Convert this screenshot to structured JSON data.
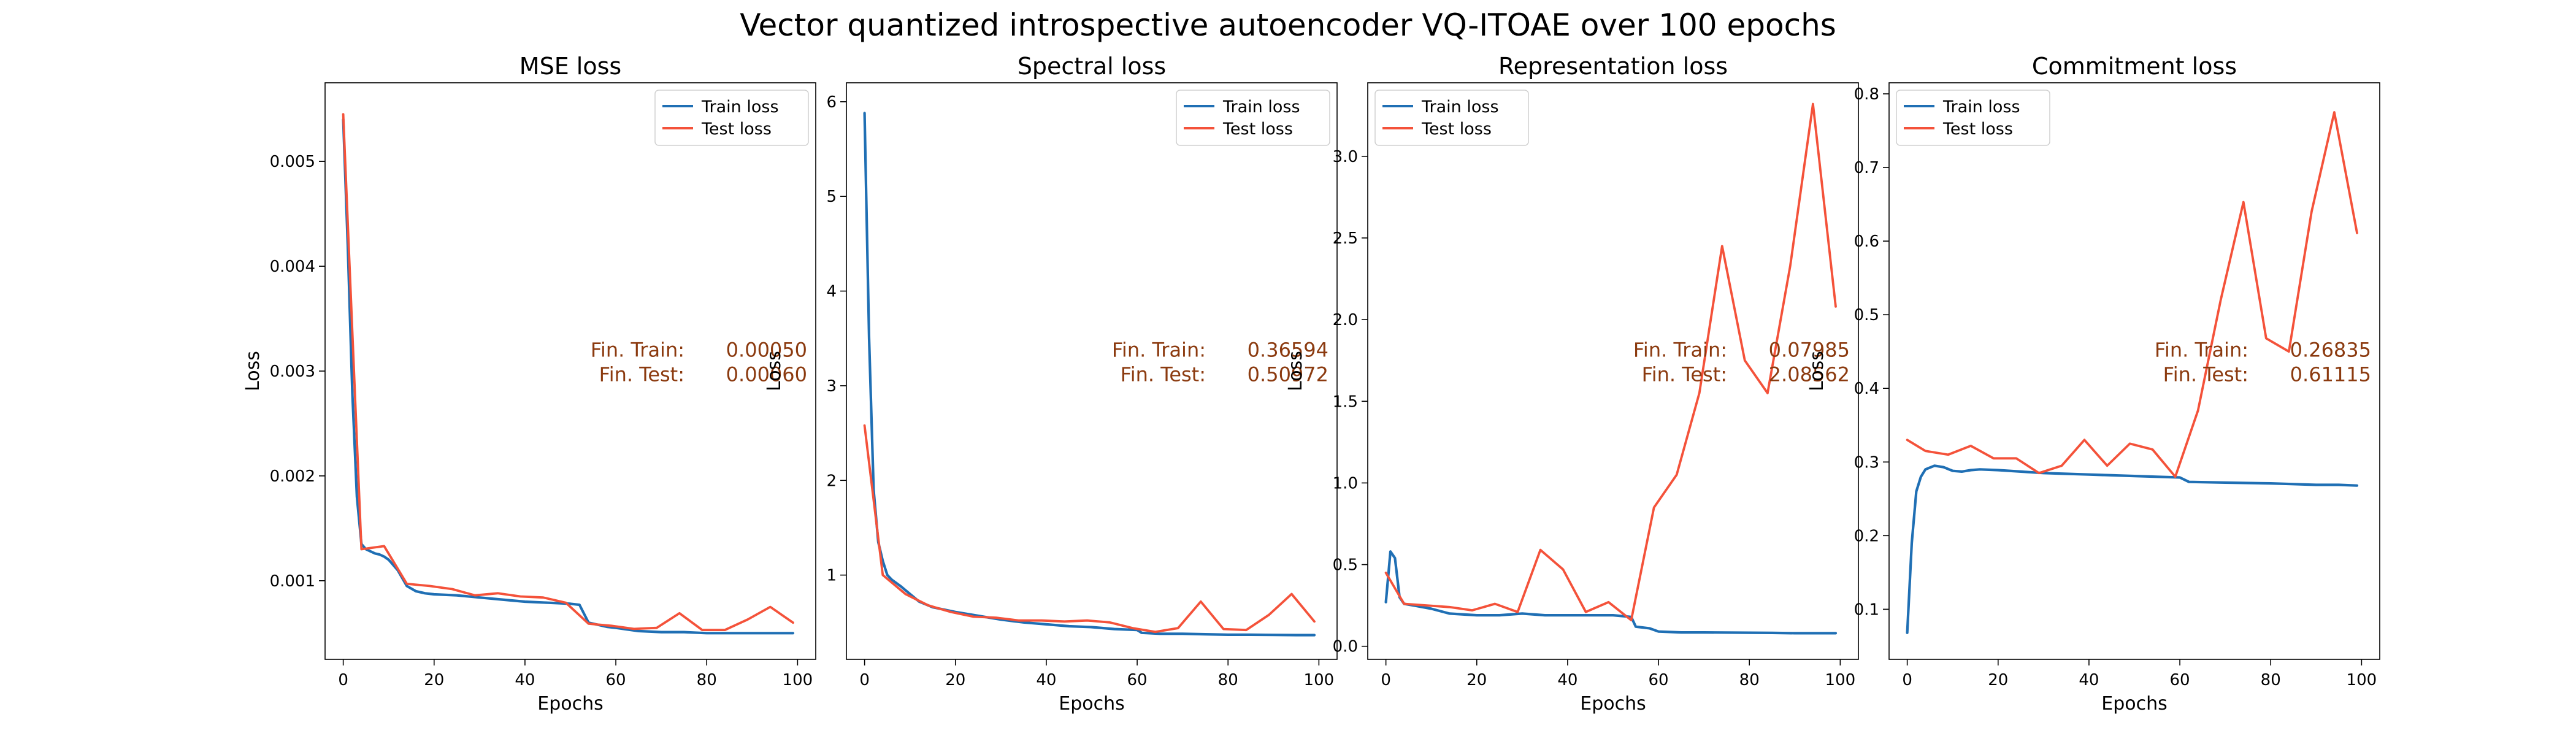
{
  "figure": {
    "title": "Vector quantized introspective autoencoder VQ-ITOAE over 100 epochs"
  },
  "colors": {
    "train": "#1f6fb4",
    "test": "#f4523a",
    "annotation": "#8b3a0f"
  },
  "chart_data": [
    {
      "type": "line",
      "title": "MSE loss",
      "xlabel": "Epochs",
      "ylabel": "Loss",
      "xlim": [
        -4,
        104
      ],
      "ylim": [
        0.00025,
        0.00575
      ],
      "xticks": [
        0,
        20,
        40,
        60,
        80,
        100
      ],
      "xtick_labels": [
        "0",
        "20",
        "40",
        "60",
        "80",
        "100"
      ],
      "yticks": [
        0.001,
        0.002,
        0.003,
        0.004,
        0.005
      ],
      "ytick_labels": [
        "0.001",
        "0.002",
        "0.003",
        "0.004",
        "0.005"
      ],
      "legend": {
        "position": "upper right",
        "entries": [
          "Train loss",
          "Test loss"
        ]
      },
      "grid": false,
      "annotation": {
        "train_label": "Fin. Train:",
        "train_value": "0.00050",
        "test_label": "Fin. Test:",
        "test_value": "0.00060"
      },
      "series": [
        {
          "name": "Train loss",
          "x": [
            0,
            1,
            2,
            3,
            4,
            5,
            6,
            7,
            8,
            9,
            10,
            12,
            14,
            16,
            18,
            20,
            25,
            30,
            35,
            40,
            45,
            50,
            52,
            54,
            56,
            58,
            60,
            65,
            70,
            75,
            80,
            85,
            90,
            95,
            99
          ],
          "y": [
            0.0054,
            0.0042,
            0.0028,
            0.0018,
            0.00135,
            0.0013,
            0.00128,
            0.00126,
            0.00125,
            0.00123,
            0.0012,
            0.0011,
            0.00095,
            0.0009,
            0.00088,
            0.00087,
            0.00086,
            0.00084,
            0.00082,
            0.0008,
            0.00079,
            0.00078,
            0.00077,
            0.0006,
            0.00058,
            0.00056,
            0.00055,
            0.00052,
            0.00051,
            0.00051,
            0.0005,
            0.0005,
            0.0005,
            0.0005,
            0.0005
          ]
        },
        {
          "name": "Test loss",
          "x": [
            0,
            4,
            9,
            14,
            19,
            24,
            29,
            34,
            39,
            44,
            49,
            54,
            59,
            64,
            69,
            74,
            79,
            84,
            89,
            94,
            99
          ],
          "y": [
            0.00545,
            0.0013,
            0.00133,
            0.00097,
            0.00095,
            0.00092,
            0.00086,
            0.00088,
            0.00085,
            0.00084,
            0.00079,
            0.00059,
            0.00057,
            0.00054,
            0.00055,
            0.00069,
            0.00053,
            0.00053,
            0.00063,
            0.00075,
            0.0006
          ]
        }
      ]
    },
    {
      "type": "line",
      "title": "Spectral loss",
      "xlabel": "Epochs",
      "ylabel": "Loss",
      "xlim": [
        -4,
        104
      ],
      "ylim": [
        0.11,
        6.2
      ],
      "xticks": [
        0,
        20,
        40,
        60,
        80,
        100
      ],
      "xtick_labels": [
        "0",
        "20",
        "40",
        "60",
        "80",
        "100"
      ],
      "yticks": [
        1,
        2,
        3,
        4,
        5,
        6
      ],
      "ytick_labels": [
        "1",
        "2",
        "3",
        "4",
        "5",
        "6"
      ],
      "legend": {
        "position": "upper right",
        "entries": [
          "Train loss",
          "Test loss"
        ]
      },
      "grid": false,
      "annotation": {
        "train_label": "Fin. Train:",
        "train_value": "0.36594",
        "test_label": "Fin. Test:",
        "test_value": "0.50972"
      },
      "series": [
        {
          "name": "Train loss",
          "x": [
            0,
            1,
            2,
            3,
            4,
            5,
            6,
            8,
            10,
            12,
            15,
            20,
            25,
            30,
            35,
            40,
            45,
            50,
            55,
            60,
            61,
            65,
            70,
            75,
            80,
            85,
            90,
            95,
            99
          ],
          "y": [
            5.88,
            3.5,
            1.9,
            1.35,
            1.15,
            1.0,
            0.95,
            0.88,
            0.8,
            0.72,
            0.66,
            0.61,
            0.57,
            0.53,
            0.5,
            0.48,
            0.46,
            0.45,
            0.43,
            0.42,
            0.39,
            0.38,
            0.38,
            0.375,
            0.37,
            0.37,
            0.368,
            0.366,
            0.366
          ]
        },
        {
          "name": "Test loss",
          "x": [
            0,
            4,
            9,
            14,
            19,
            24,
            29,
            34,
            39,
            44,
            49,
            54,
            59,
            64,
            69,
            74,
            79,
            84,
            89,
            94,
            99
          ],
          "y": [
            2.58,
            1.0,
            0.8,
            0.68,
            0.61,
            0.56,
            0.55,
            0.52,
            0.52,
            0.51,
            0.52,
            0.5,
            0.44,
            0.4,
            0.44,
            0.72,
            0.43,
            0.42,
            0.58,
            0.8,
            0.51
          ]
        }
      ]
    },
    {
      "type": "line",
      "title": "Representation loss",
      "xlabel": "Epochs",
      "ylabel": "Loss",
      "xlim": [
        -4,
        104
      ],
      "ylim": [
        -0.08,
        3.45
      ],
      "xticks": [
        0,
        20,
        40,
        60,
        80,
        100
      ],
      "xtick_labels": [
        "0",
        "20",
        "40",
        "60",
        "80",
        "100"
      ],
      "yticks": [
        0.0,
        0.5,
        1.0,
        1.5,
        2.0,
        2.5,
        3.0
      ],
      "ytick_labels": [
        "0.0",
        "0.5",
        "1.0",
        "1.5",
        "2.0",
        "2.5",
        "3.0"
      ],
      "legend": {
        "position": "upper left",
        "entries": [
          "Train loss",
          "Test loss"
        ]
      },
      "grid": false,
      "annotation": {
        "train_label": "Fin. Train:",
        "train_value": "0.07985",
        "test_label": "Fin. Test:",
        "test_value": "2.08562"
      },
      "series": [
        {
          "name": "Train loss",
          "x": [
            0,
            1,
            2,
            3,
            4,
            6,
            10,
            14,
            20,
            25,
            30,
            35,
            40,
            45,
            50,
            54,
            55,
            58,
            60,
            65,
            70,
            80,
            85,
            90,
            95,
            99
          ],
          "y": [
            0.27,
            0.58,
            0.54,
            0.3,
            0.26,
            0.25,
            0.23,
            0.2,
            0.19,
            0.19,
            0.2,
            0.19,
            0.19,
            0.19,
            0.19,
            0.18,
            0.12,
            0.11,
            0.09,
            0.085,
            0.085,
            0.083,
            0.082,
            0.08,
            0.08,
            0.08
          ]
        },
        {
          "name": "Test loss",
          "x": [
            0,
            4,
            9,
            14,
            19,
            24,
            29,
            34,
            39,
            44,
            49,
            54,
            59,
            64,
            69,
            74,
            79,
            84,
            89,
            94,
            99
          ],
          "y": [
            0.45,
            0.26,
            0.25,
            0.24,
            0.22,
            0.26,
            0.21,
            0.59,
            0.47,
            0.21,
            0.27,
            0.16,
            0.85,
            1.05,
            1.55,
            2.45,
            1.75,
            1.55,
            2.33,
            3.32,
            2.08
          ]
        }
      ]
    },
    {
      "type": "line",
      "title": "Commitment loss",
      "xlabel": "Epochs",
      "ylabel": "Loss",
      "xlim": [
        -4,
        104
      ],
      "ylim": [
        0.032,
        0.815
      ],
      "xticks": [
        0,
        20,
        40,
        60,
        80,
        100
      ],
      "xtick_labels": [
        "0",
        "20",
        "40",
        "60",
        "80",
        "100"
      ],
      "yticks": [
        0.1,
        0.2,
        0.3,
        0.4,
        0.5,
        0.6,
        0.7,
        0.8
      ],
      "ytick_labels": [
        "0.1",
        "0.2",
        "0.3",
        "0.4",
        "0.5",
        "0.6",
        "0.7",
        "0.8"
      ],
      "legend": {
        "position": "upper left",
        "entries": [
          "Train loss",
          "Test loss"
        ]
      },
      "grid": false,
      "annotation": {
        "train_label": "Fin. Train:",
        "train_value": "0.26835",
        "test_label": "Fin. Test:",
        "test_value": "0.61115"
      },
      "series": [
        {
          "name": "Train loss",
          "x": [
            0,
            1,
            2,
            3,
            4,
            6,
            8,
            10,
            12,
            14,
            16,
            20,
            25,
            30,
            35,
            40,
            45,
            50,
            55,
            60,
            62,
            70,
            80,
            85,
            90,
            95,
            99
          ],
          "y": [
            0.068,
            0.19,
            0.26,
            0.28,
            0.29,
            0.295,
            0.293,
            0.288,
            0.287,
            0.289,
            0.29,
            0.289,
            0.287,
            0.285,
            0.284,
            0.283,
            0.282,
            0.281,
            0.28,
            0.279,
            0.273,
            0.272,
            0.271,
            0.27,
            0.269,
            0.269,
            0.268
          ]
        },
        {
          "name": "Test loss",
          "x": [
            0,
            4,
            9,
            14,
            19,
            24,
            29,
            34,
            39,
            44,
            49,
            54,
            59,
            64,
            69,
            74,
            79,
            84,
            89,
            94,
            99
          ],
          "y": [
            0.33,
            0.315,
            0.31,
            0.322,
            0.305,
            0.305,
            0.285,
            0.295,
            0.33,
            0.295,
            0.325,
            0.317,
            0.28,
            0.37,
            0.52,
            0.653,
            0.468,
            0.45,
            0.64,
            0.775,
            0.611
          ]
        }
      ]
    }
  ]
}
